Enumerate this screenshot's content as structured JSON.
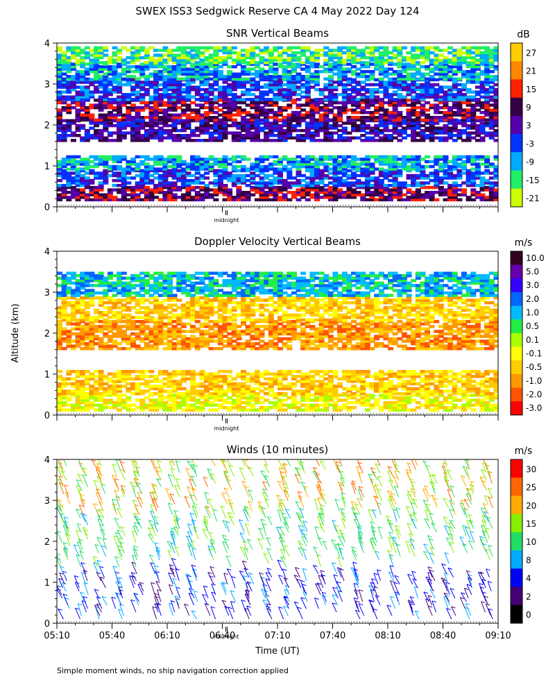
{
  "title": "SWEX ISS3 Sedgwick Reserve CA   4 May 2022 Day 124",
  "ylabel": "Altitude (km)",
  "xlabel": "Time (UT)",
  "midnight_label": "midnight",
  "footnote": "Simple moment winds, no ship navigation correction applied",
  "chart_data": [
    {
      "type": "heatmap",
      "title": "SNR Vertical Beams",
      "colorbar_unit": "dB",
      "colorbar_labels": [
        "27",
        "21",
        "15",
        "9",
        "3",
        "-3",
        "-9",
        "-15",
        "-21"
      ],
      "colors": [
        "#ffcc00",
        "#ff8800",
        "#ff2200",
        "#330044",
        "#5500aa",
        "#0033ff",
        "#00aaff",
        "#22ee66",
        "#ccff00"
      ],
      "yticks": [
        "0",
        "1",
        "2",
        "3",
        "4"
      ],
      "ylim": [
        0,
        4
      ],
      "xlim": [
        "05:10",
        "09:10"
      ],
      "layers": [
        {
          "from": 0.15,
          "to": 0.5,
          "value": 9
        },
        {
          "from": 0.5,
          "to": 0.9,
          "value": -3
        },
        {
          "from": 0.9,
          "to": 1.25,
          "value": -9
        },
        {
          "from": 1.6,
          "to": 2.1,
          "value": 3
        },
        {
          "from": 2.1,
          "to": 2.6,
          "value": 9
        },
        {
          "from": 2.6,
          "to": 3.1,
          "value": -3
        },
        {
          "from": 3.1,
          "to": 3.5,
          "value": -9
        },
        {
          "from": 3.5,
          "to": 3.9,
          "value": -15
        }
      ]
    },
    {
      "type": "heatmap",
      "title": "Doppler Velocity Vertical Beams",
      "colorbar_unit": "m/s",
      "colorbar_labels": [
        "10.0",
        "5.0",
        "3.0",
        "2.0",
        "1.0",
        "0.5",
        "0.1",
        "-0.1",
        "-0.5",
        "-1.0",
        "-2.0",
        "-3.0"
      ],
      "colors": [
        "#330022",
        "#6600aa",
        "#3300ff",
        "#0066ff",
        "#00bbff",
        "#22ee44",
        "#aaff00",
        "#ffff00",
        "#ffcc00",
        "#ff9900",
        "#ff5500",
        "#ff0000"
      ],
      "yticks": [
        "0",
        "1",
        "2",
        "3",
        "4"
      ],
      "ylim": [
        0,
        4
      ],
      "xlim": [
        "05:10",
        "09:10"
      ],
      "layers": [
        {
          "from": 0.1,
          "to": 0.5,
          "value": -0.1
        },
        {
          "from": 0.5,
          "to": 1.1,
          "value": -0.5
        },
        {
          "from": 1.6,
          "to": 2.3,
          "value": -1.0
        },
        {
          "from": 2.3,
          "to": 2.9,
          "value": -0.5
        },
        {
          "from": 2.9,
          "to": 3.5,
          "value": 1.0
        }
      ]
    },
    {
      "type": "scatter",
      "title": "Winds (10 minutes)",
      "colorbar_unit": "m/s",
      "colorbar_labels": [
        "30",
        "25",
        "20",
        "15",
        "10",
        "8",
        "4",
        "2",
        "0"
      ],
      "colors": [
        "#ff0000",
        "#ff6600",
        "#ffaa00",
        "#88ee00",
        "#22dd66",
        "#00aaff",
        "#0000ff",
        "#440077",
        "#000000"
      ],
      "yticks": [
        "0",
        "1",
        "2",
        "3",
        "4"
      ],
      "ylim": [
        0,
        4
      ],
      "xticks": [
        "05:10",
        "05:40",
        "06:10",
        "06:40",
        "07:10",
        "07:40",
        "08:10",
        "08:40",
        "09:10"
      ],
      "xlim": [
        "05:10",
        "09:10"
      ],
      "profile_times": [
        "05:10",
        "05:20",
        "05:30",
        "05:40",
        "05:50",
        "06:00",
        "06:10",
        "06:20",
        "06:30",
        "06:40",
        "06:50",
        "07:00",
        "07:10",
        "07:20",
        "07:30",
        "07:40",
        "07:50",
        "08:00",
        "08:10",
        "08:20",
        "08:30",
        "08:40",
        "08:50",
        "09:00"
      ]
    }
  ]
}
